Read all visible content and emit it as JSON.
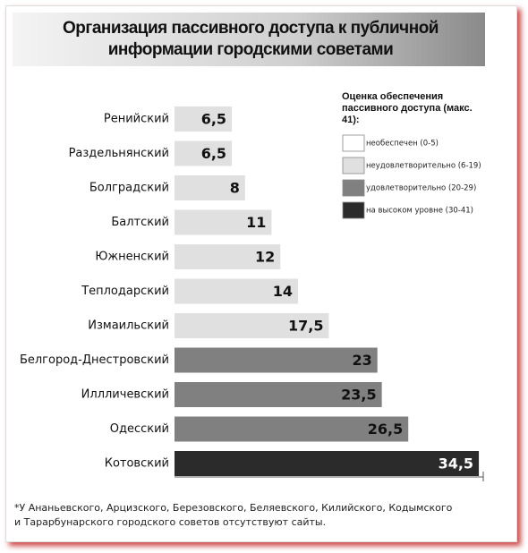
{
  "chart_data": {
    "type": "bar",
    "orientation": "horizontal",
    "title": "Организация пассивного доступа к публичной информации городскими советами",
    "categories": [
      "Ренийский",
      "Раздельнянский",
      "Болградский",
      "Балтский",
      "Южненский",
      "Теплодарский",
      "Измаильский",
      "Белгород-Днестровский",
      "Иллличевский",
      "Одесский",
      "Котовский"
    ],
    "values": [
      6.5,
      6.5,
      8,
      11,
      12,
      14,
      17.5,
      23,
      23.5,
      26.5,
      34.5
    ],
    "value_labels": [
      "6,5",
      "6,5",
      "8",
      "11",
      "12",
      "14",
      "17,5",
      "23",
      "23,5",
      "26,5",
      "34,5"
    ],
    "colors": [
      "#e0e0e0",
      "#e0e0e0",
      "#e0e0e0",
      "#e0e0e0",
      "#e0e0e0",
      "#e0e0e0",
      "#e0e0e0",
      "#808080",
      "#808080",
      "#808080",
      "#2b2b2b"
    ],
    "xlim": [
      0,
      35
    ],
    "legend": {
      "title": "Оценка обеспечения пассивного доступа (макс. 41):",
      "items": [
        {
          "label": "необеспечен (0-5)",
          "color": "#ffffff"
        },
        {
          "label": "неудовлетворительно (6-19)",
          "color": "#e0e0e0"
        },
        {
          "label": "удовлетворительно (20-29)",
          "color": "#808080"
        },
        {
          "label": "на высоком уровне (30-41)",
          "color": "#2b2b2b"
        }
      ]
    },
    "footnote": "*У Ананьевского, Арцизского, Березовского, Беляевского, Килийского, Кодымского и Тарарбунарского городского советов отсутствуют сайты."
  }
}
